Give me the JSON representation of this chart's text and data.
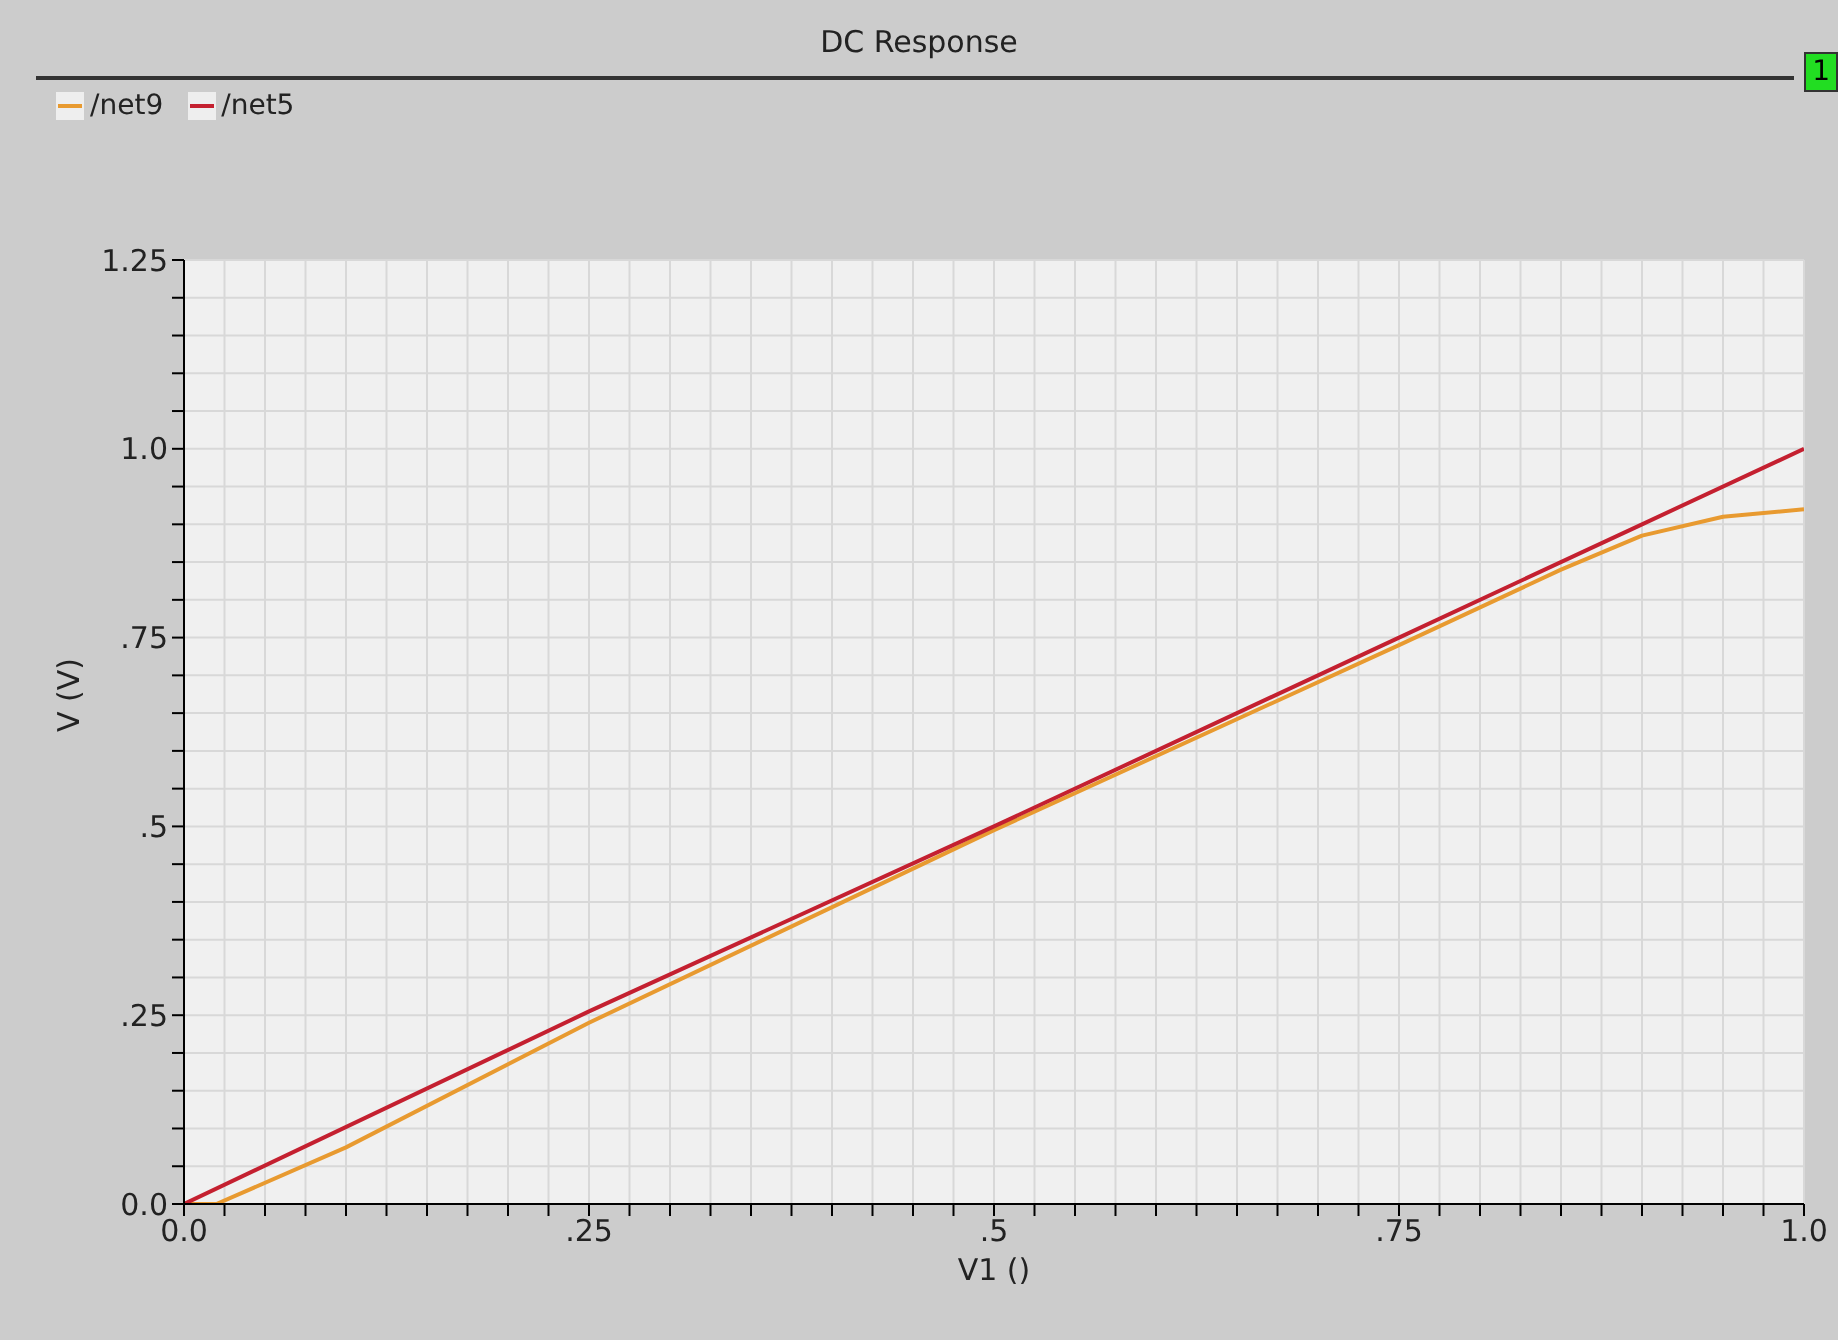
{
  "chart_data": {
    "type": "line",
    "title": "DC Response",
    "xlabel": "V1 ()",
    "ylabel": "V (V)",
    "annotations": [
      "1"
    ],
    "series": [
      {
        "name": "/net9",
        "color": "#e89a30",
        "x": [
          0,
          0.02,
          0.1,
          0.25,
          0.5,
          0.75,
          0.85,
          0.9,
          0.95,
          1.0
        ],
        "values": [
          0,
          0,
          0.075,
          0.24,
          0.495,
          0.74,
          0.84,
          0.885,
          0.91,
          0.92
        ]
      },
      {
        "name": "/net5",
        "color": "#c42030",
        "x": [
          0,
          0.25,
          0.5,
          0.75,
          0.9,
          1.0
        ],
        "values": [
          0,
          0.255,
          0.5,
          0.75,
          0.9,
          1.0
        ]
      }
    ],
    "xlim": [
      0,
      1.0
    ],
    "ylim": [
      0,
      1.25
    ],
    "xticks": [
      {
        "value": 0,
        "label": "0.0"
      },
      {
        "value": 0.025,
        "label": null
      },
      {
        "value": 0.05,
        "label": null
      },
      {
        "value": 0.075,
        "label": null
      },
      {
        "value": 0.1,
        "label": null
      },
      {
        "value": 0.125,
        "label": null
      },
      {
        "value": 0.15,
        "label": null
      },
      {
        "value": 0.175,
        "label": null
      },
      {
        "value": 0.2,
        "label": null
      },
      {
        "value": 0.225,
        "label": null
      },
      {
        "value": 0.25,
        "label": ".25"
      },
      {
        "value": 0.275,
        "label": null
      },
      {
        "value": 0.3,
        "label": null
      },
      {
        "value": 0.325,
        "label": null
      },
      {
        "value": 0.35,
        "label": null
      },
      {
        "value": 0.375,
        "label": null
      },
      {
        "value": 0.4,
        "label": null
      },
      {
        "value": 0.425,
        "label": null
      },
      {
        "value": 0.45,
        "label": null
      },
      {
        "value": 0.475,
        "label": null
      },
      {
        "value": 0.5,
        "label": ".5"
      },
      {
        "value": 0.525,
        "label": null
      },
      {
        "value": 0.55,
        "label": null
      },
      {
        "value": 0.575,
        "label": null
      },
      {
        "value": 0.6,
        "label": null
      },
      {
        "value": 0.625,
        "label": null
      },
      {
        "value": 0.65,
        "label": null
      },
      {
        "value": 0.675,
        "label": null
      },
      {
        "value": 0.7,
        "label": null
      },
      {
        "value": 0.725,
        "label": null
      },
      {
        "value": 0.75,
        "label": ".75"
      },
      {
        "value": 0.775,
        "label": null
      },
      {
        "value": 0.8,
        "label": null
      },
      {
        "value": 0.825,
        "label": null
      },
      {
        "value": 0.85,
        "label": null
      },
      {
        "value": 0.875,
        "label": null
      },
      {
        "value": 0.9,
        "label": null
      },
      {
        "value": 0.925,
        "label": null
      },
      {
        "value": 0.95,
        "label": null
      },
      {
        "value": 0.975,
        "label": null
      },
      {
        "value": 1.0,
        "label": "1.0"
      }
    ],
    "yticks": [
      {
        "value": 0,
        "label": "0.0"
      },
      {
        "value": 0.05,
        "label": null
      },
      {
        "value": 0.1,
        "label": null
      },
      {
        "value": 0.15,
        "label": null
      },
      {
        "value": 0.2,
        "label": null
      },
      {
        "value": 0.25,
        "label": ".25"
      },
      {
        "value": 0.3,
        "label": null
      },
      {
        "value": 0.35,
        "label": null
      },
      {
        "value": 0.4,
        "label": null
      },
      {
        "value": 0.45,
        "label": null
      },
      {
        "value": 0.5,
        "label": ".5"
      },
      {
        "value": 0.55,
        "label": null
      },
      {
        "value": 0.6,
        "label": null
      },
      {
        "value": 0.65,
        "label": null
      },
      {
        "value": 0.7,
        "label": null
      },
      {
        "value": 0.75,
        "label": ".75"
      },
      {
        "value": 0.8,
        "label": null
      },
      {
        "value": 0.85,
        "label": null
      },
      {
        "value": 0.9,
        "label": null
      },
      {
        "value": 0.95,
        "label": null
      },
      {
        "value": 1.0,
        "label": "1.0"
      },
      {
        "value": 1.05,
        "label": null
      },
      {
        "value": 1.1,
        "label": null
      },
      {
        "value": 1.15,
        "label": null
      },
      {
        "value": 1.2,
        "label": null
      },
      {
        "value": 1.25,
        "label": "1.25"
      }
    ],
    "grid": true,
    "legend": "top left",
    "marker": "none",
    "line_style": "solid"
  }
}
